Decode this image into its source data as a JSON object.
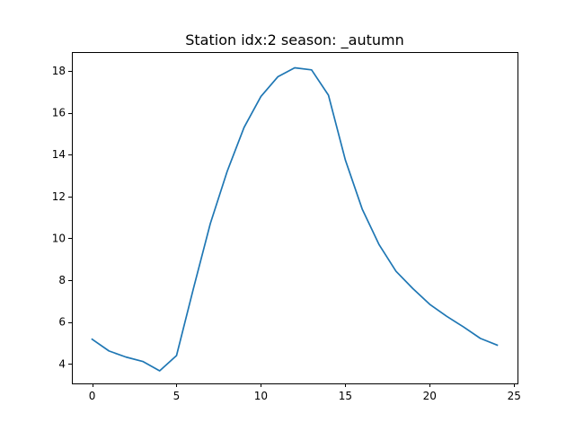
{
  "chart_data": {
    "type": "line",
    "title": "Station idx:2 season: _autumn",
    "xlabel": "",
    "ylabel": "",
    "xlim": [
      -1.2,
      25.2
    ],
    "ylim": [
      3.07,
      18.9
    ],
    "x_ticks": [
      0,
      5,
      10,
      15,
      20,
      25
    ],
    "y_ticks": [
      4,
      6,
      8,
      10,
      12,
      14,
      16,
      18
    ],
    "x_tick_labels": [
      "0",
      "5",
      "10",
      "15",
      "20",
      "25"
    ],
    "y_tick_labels": [
      "4",
      "6",
      "8",
      "10",
      "12",
      "14",
      "16",
      "18"
    ],
    "grid": false,
    "series": [
      {
        "color": "#1f77b4",
        "x": [
          0,
          1,
          2,
          3,
          4,
          5,
          6,
          7,
          8,
          9,
          10,
          11,
          12,
          13,
          14,
          15,
          16,
          17,
          18,
          19,
          20,
          21,
          22,
          23,
          24
        ],
        "y": [
          5.18,
          4.62,
          4.33,
          4.12,
          3.67,
          4.4,
          7.6,
          10.7,
          13.2,
          15.3,
          16.78,
          17.72,
          18.15,
          18.05,
          16.84,
          13.75,
          11.4,
          9.7,
          8.43,
          7.6,
          6.85,
          6.28,
          5.77,
          5.22,
          4.9
        ]
      }
    ]
  }
}
